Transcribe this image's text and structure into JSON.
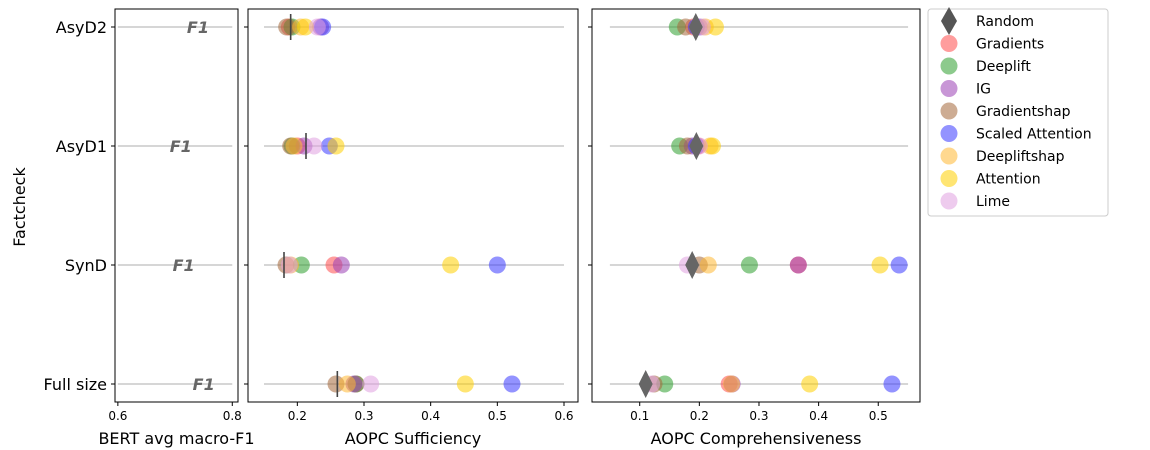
{
  "chart_data": {
    "type": "scatter",
    "ylabel": "Factcheck",
    "categories": [
      "AsyD2",
      "AsyD1",
      "SynD",
      "Full size"
    ],
    "colors": {
      "Random": "#555555",
      "Gradients": "#ff4d4d",
      "Deeplift": "#2e9e2e",
      "IG": "#9b40b5",
      "Gradientshap": "#a4683a",
      "Scaled Attention": "#3b3bff",
      "Deepliftshap": "#ffb833",
      "Attention": "#ffd000",
      "Lime": "#e0a0e0"
    },
    "legend": {
      "placement": "outside-right",
      "entries": [
        {
          "label": "Random",
          "marker": "diamond",
          "color": "#555555"
        },
        {
          "label": "Gradients",
          "marker": "circle",
          "color": "#ff4d4d"
        },
        {
          "label": "Deeplift",
          "marker": "circle",
          "color": "#2e9e2e"
        },
        {
          "label": "IG",
          "marker": "circle",
          "color": "#9b40b5"
        },
        {
          "label": "Gradientshap",
          "marker": "circle",
          "color": "#a4683a"
        },
        {
          "label": "Scaled Attention",
          "marker": "circle",
          "color": "#3b3bff"
        },
        {
          "label": "Deepliftshap",
          "marker": "circle",
          "color": "#ffb833"
        },
        {
          "label": "Attention",
          "marker": "circle",
          "color": "#ffd000"
        },
        {
          "label": "Lime",
          "marker": "circle",
          "color": "#e0a0e0"
        }
      ]
    },
    "panels": [
      {
        "id": "bert",
        "xlabel": "BERT avg macro-F1",
        "xlim": [
          0.595,
          0.81
        ],
        "xticks": [
          0.6,
          0.8
        ],
        "xtick_labels": [
          "0.6",
          "0.8"
        ],
        "marker_text": "F1",
        "line_range": [
          0.6,
          0.8
        ],
        "values": {
          "AsyD2": 0.74,
          "AsyD1": 0.71,
          "SynD": 0.715,
          "Full size": 0.75
        }
      },
      {
        "id": "sufficiency",
        "xlabel": "AOPC Sufficiency",
        "xlim": [
          0.126,
          0.621
        ],
        "xticks": [
          0.2,
          0.3,
          0.4,
          0.5,
          0.6
        ],
        "xtick_labels": [
          "0.2",
          "0.3",
          "0.4",
          "0.5",
          "0.6"
        ],
        "line_range": [
          0.15,
          0.6
        ],
        "random_marker": "vline",
        "random": {
          "AsyD2": 0.19,
          "AsyD1": 0.213,
          "SynD": 0.18,
          "Full size": 0.26
        },
        "points": {
          "AsyD2": {
            "Gradients": 0.188,
            "Deeplift": 0.192,
            "IG": 0.235,
            "Gradientshap": 0.184,
            "Scaled Attention": 0.238,
            "Deepliftshap": 0.205,
            "Attention": 0.212,
            "Lime": 0.23
          },
          "AsyD1": {
            "Gradients": 0.2,
            "Deeplift": 0.192,
            "IG": 0.21,
            "Gradientshap": 0.19,
            "Scaled Attention": 0.248,
            "Deepliftshap": 0.195,
            "Attention": 0.258,
            "Lime": 0.225
          },
          "SynD": {
            "Gradients": 0.255,
            "Deeplift": 0.206,
            "IG": 0.266,
            "Gradientshap": 0.183,
            "Scaled Attention": 0.5,
            "Deepliftshap": 0.19,
            "Attention": 0.43,
            "Lime": 0.188
          },
          "Full size": {
            "Gradients": 0.288,
            "Deeplift": 0.288,
            "IG": 0.285,
            "Gradientshap": 0.258,
            "Scaled Attention": 0.522,
            "Deepliftshap": 0.275,
            "Attention": 0.452,
            "Lime": 0.31
          }
        }
      },
      {
        "id": "comprehensiveness",
        "xlabel": "AOPC Comprehensiveness",
        "xlim": [
          0.02,
          0.57
        ],
        "xticks": [
          0.1,
          0.2,
          0.3,
          0.4,
          0.5
        ],
        "xtick_labels": [
          "0.1",
          "0.2",
          "0.3",
          "0.4",
          "0.5"
        ],
        "line_range": [
          0.05,
          0.55
        ],
        "random_marker": "diamond",
        "random": {
          "AsyD2": 0.194,
          "AsyD1": 0.195,
          "SynD": 0.188,
          "Full size": 0.11
        },
        "points": {
          "AsyD2": {
            "Gradients": 0.19,
            "Deeplift": 0.163,
            "IG": 0.2,
            "Gradientshap": 0.177,
            "Scaled Attention": 0.195,
            "Deepliftshap": 0.21,
            "Attention": 0.227,
            "Lime": 0.205
          },
          "AsyD1": {
            "Gradients": 0.198,
            "Deeplift": 0.167,
            "IG": 0.188,
            "Gradientshap": 0.18,
            "Scaled Attention": 0.195,
            "Deepliftshap": 0.218,
            "Attention": 0.222,
            "Lime": 0.2
          },
          "SynD": {
            "Gradients": 0.366,
            "Deeplift": 0.284,
            "IG": 0.366,
            "Gradientshap": 0.2,
            "Scaled Attention": 0.535,
            "Deepliftshap": 0.215,
            "Attention": 0.503,
            "Lime": 0.18
          },
          "Full size": {
            "Gradients": 0.25,
            "Deeplift": 0.142,
            "IG": 0.255,
            "Gradientshap": 0.124,
            "Scaled Attention": 0.523,
            "Deepliftshap": 0.254,
            "Attention": 0.385,
            "Lime": 0.12
          }
        }
      }
    ]
  }
}
